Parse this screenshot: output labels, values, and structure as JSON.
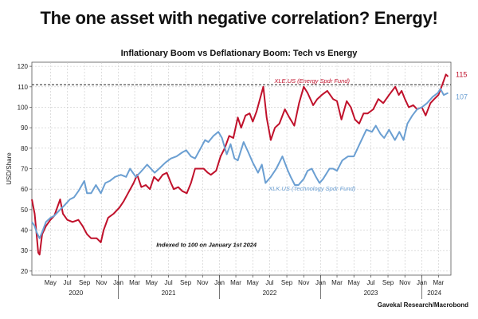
{
  "headline": "The one asset with negative correlation? Energy!",
  "source": "Gavekal Research/Macrobond",
  "chart_data": {
    "type": "line",
    "title": "Inflationary Boom vs Deflationary Boom: Tech vs Energy",
    "ylabel": "USD/Share",
    "xlabel": "",
    "ylim": [
      18,
      122
    ],
    "yticks": [
      20,
      30,
      40,
      50,
      60,
      70,
      80,
      90,
      100,
      110,
      120
    ],
    "xlim": [
      "2020-02-24",
      "2024-04-15"
    ],
    "x_month_ticks": [
      {
        "date": "2020-05-01",
        "label": "May"
      },
      {
        "date": "2020-07-01",
        "label": "Jul"
      },
      {
        "date": "2020-09-01",
        "label": "Sep"
      },
      {
        "date": "2020-11-01",
        "label": "Nov"
      },
      {
        "date": "2021-01-01",
        "label": "Jan"
      },
      {
        "date": "2021-03-01",
        "label": "Mar"
      },
      {
        "date": "2021-05-01",
        "label": "May"
      },
      {
        "date": "2021-07-01",
        "label": "Jul"
      },
      {
        "date": "2021-09-01",
        "label": "Sep"
      },
      {
        "date": "2021-11-01",
        "label": "Nov"
      },
      {
        "date": "2022-01-01",
        "label": "Jan"
      },
      {
        "date": "2022-03-01",
        "label": "Mar"
      },
      {
        "date": "2022-05-01",
        "label": "May"
      },
      {
        "date": "2022-07-01",
        "label": "Jul"
      },
      {
        "date": "2022-09-01",
        "label": "Sep"
      },
      {
        "date": "2022-11-01",
        "label": "Nov"
      },
      {
        "date": "2023-01-01",
        "label": "Jan"
      },
      {
        "date": "2023-03-01",
        "label": "Mar"
      },
      {
        "date": "2023-05-01",
        "label": "May"
      },
      {
        "date": "2023-07-01",
        "label": "Jul"
      },
      {
        "date": "2023-09-01",
        "label": "Sep"
      },
      {
        "date": "2023-11-01",
        "label": "Nov"
      },
      {
        "date": "2024-01-01",
        "label": "Jan"
      },
      {
        "date": "2024-03-01",
        "label": "Mar"
      }
    ],
    "x_year_labels": [
      {
        "date": "2020-08-01",
        "label": "2020"
      },
      {
        "date": "2021-07-01",
        "label": "2021"
      },
      {
        "date": "2022-07-01",
        "label": "2022"
      },
      {
        "date": "2023-07-01",
        "label": "2023"
      },
      {
        "date": "2024-02-15",
        "label": "2024"
      }
    ],
    "year_dividers": [
      "2021-01-01",
      "2022-01-01",
      "2023-01-01",
      "2024-01-01"
    ],
    "grid": true,
    "reference_line": {
      "y": 111,
      "style": "dashed"
    },
    "annotation": "Indexed to 100 on January 1st 2024",
    "series": [
      {
        "name": "XLE.US (Energy Spdr Fund)",
        "color": "#c0112b",
        "end_label": "115",
        "points": [
          [
            "2020-02-24",
            55
          ],
          [
            "2020-03-05",
            48
          ],
          [
            "2020-03-12",
            38
          ],
          [
            "2020-03-18",
            29
          ],
          [
            "2020-03-23",
            28
          ],
          [
            "2020-04-01",
            38
          ],
          [
            "2020-04-15",
            42
          ],
          [
            "2020-05-01",
            45
          ],
          [
            "2020-05-15",
            47
          ],
          [
            "2020-06-05",
            55
          ],
          [
            "2020-06-15",
            48
          ],
          [
            "2020-07-01",
            45
          ],
          [
            "2020-07-20",
            44
          ],
          [
            "2020-08-10",
            45
          ],
          [
            "2020-08-25",
            42
          ],
          [
            "2020-09-10",
            38
          ],
          [
            "2020-09-25",
            36
          ],
          [
            "2020-10-15",
            36
          ],
          [
            "2020-10-30",
            34
          ],
          [
            "2020-11-09",
            40
          ],
          [
            "2020-11-25",
            46
          ],
          [
            "2020-12-15",
            48
          ],
          [
            "2021-01-05",
            51
          ],
          [
            "2021-01-20",
            54
          ],
          [
            "2021-02-05",
            58
          ],
          [
            "2021-02-25",
            63
          ],
          [
            "2021-03-10",
            67
          ],
          [
            "2021-03-25",
            61
          ],
          [
            "2021-04-10",
            62
          ],
          [
            "2021-04-25",
            60
          ],
          [
            "2021-05-10",
            66
          ],
          [
            "2021-05-25",
            64
          ],
          [
            "2021-06-10",
            67
          ],
          [
            "2021-06-25",
            68
          ],
          [
            "2021-07-10",
            63
          ],
          [
            "2021-07-20",
            60
          ],
          [
            "2021-08-05",
            61
          ],
          [
            "2021-08-20",
            59
          ],
          [
            "2021-09-05",
            58
          ],
          [
            "2021-09-20",
            63
          ],
          [
            "2021-10-05",
            70
          ],
          [
            "2021-10-20",
            70
          ],
          [
            "2021-11-05",
            70
          ],
          [
            "2021-11-20",
            68
          ],
          [
            "2021-12-01",
            67
          ],
          [
            "2021-12-20",
            69
          ],
          [
            "2022-01-05",
            76
          ],
          [
            "2022-01-20",
            80
          ],
          [
            "2022-02-05",
            86
          ],
          [
            "2022-02-20",
            85
          ],
          [
            "2022-03-08",
            95
          ],
          [
            "2022-03-20",
            90
          ],
          [
            "2022-04-05",
            96
          ],
          [
            "2022-04-20",
            97
          ],
          [
            "2022-05-01",
            93
          ],
          [
            "2022-05-15",
            98
          ],
          [
            "2022-06-08",
            110
          ],
          [
            "2022-06-20",
            95
          ],
          [
            "2022-07-05",
            84
          ],
          [
            "2022-07-20",
            90
          ],
          [
            "2022-08-05",
            92
          ],
          [
            "2022-08-25",
            99
          ],
          [
            "2022-09-10",
            95
          ],
          [
            "2022-09-28",
            91
          ],
          [
            "2022-10-15",
            102
          ],
          [
            "2022-11-01",
            110
          ],
          [
            "2022-11-15",
            107
          ],
          [
            "2022-12-05",
            101
          ],
          [
            "2022-12-20",
            104
          ],
          [
            "2023-01-05",
            106
          ],
          [
            "2023-01-25",
            108
          ],
          [
            "2023-02-15",
            104
          ],
          [
            "2023-03-01",
            103
          ],
          [
            "2023-03-17",
            94
          ],
          [
            "2023-04-05",
            103
          ],
          [
            "2023-04-20",
            100
          ],
          [
            "2023-05-05",
            94
          ],
          [
            "2023-05-20",
            92
          ],
          [
            "2023-06-05",
            97
          ],
          [
            "2023-06-20",
            97
          ],
          [
            "2023-07-10",
            99
          ],
          [
            "2023-07-28",
            104
          ],
          [
            "2023-08-15",
            102
          ],
          [
            "2023-09-05",
            106
          ],
          [
            "2023-09-27",
            110
          ],
          [
            "2023-10-10",
            106
          ],
          [
            "2023-10-20",
            108
          ],
          [
            "2023-11-01",
            104
          ],
          [
            "2023-11-15",
            100
          ],
          [
            "2023-12-01",
            101
          ],
          [
            "2023-12-15",
            99
          ],
          [
            "2024-01-01",
            100
          ],
          [
            "2024-01-15",
            96
          ],
          [
            "2024-02-01",
            102
          ],
          [
            "2024-02-15",
            104
          ],
          [
            "2024-03-01",
            106
          ],
          [
            "2024-03-15",
            111
          ],
          [
            "2024-03-28",
            116
          ],
          [
            "2024-04-05",
            115
          ]
        ]
      },
      {
        "name": "XLK.US (Technology Spdr Fund)",
        "color": "#6b9fd2",
        "end_label": "107",
        "points": [
          [
            "2020-02-24",
            44
          ],
          [
            "2020-03-05",
            42
          ],
          [
            "2020-03-12",
            39
          ],
          [
            "2020-03-23",
            36
          ],
          [
            "2020-04-01",
            39
          ],
          [
            "2020-04-15",
            44
          ],
          [
            "2020-05-01",
            46
          ],
          [
            "2020-05-15",
            47
          ],
          [
            "2020-06-05",
            50
          ],
          [
            "2020-06-20",
            52
          ],
          [
            "2020-07-10",
            55
          ],
          [
            "2020-07-25",
            56
          ],
          [
            "2020-08-10",
            59
          ],
          [
            "2020-08-31",
            64
          ],
          [
            "2020-09-10",
            58
          ],
          [
            "2020-09-25",
            58
          ],
          [
            "2020-10-12",
            62
          ],
          [
            "2020-10-30",
            58
          ],
          [
            "2020-11-15",
            63
          ],
          [
            "2020-12-01",
            64
          ],
          [
            "2020-12-20",
            66
          ],
          [
            "2021-01-10",
            67
          ],
          [
            "2021-01-29",
            66
          ],
          [
            "2021-02-12",
            70
          ],
          [
            "2021-03-05",
            66
          ],
          [
            "2021-03-20",
            68
          ],
          [
            "2021-04-15",
            72
          ],
          [
            "2021-05-12",
            68
          ],
          [
            "2021-05-28",
            70
          ],
          [
            "2021-06-20",
            73
          ],
          [
            "2021-07-10",
            75
          ],
          [
            "2021-07-30",
            76
          ],
          [
            "2021-08-20",
            78
          ],
          [
            "2021-09-03",
            79
          ],
          [
            "2021-09-20",
            76
          ],
          [
            "2021-10-05",
            75
          ],
          [
            "2021-10-25",
            80
          ],
          [
            "2021-11-10",
            84
          ],
          [
            "2021-11-22",
            83
          ],
          [
            "2021-12-10",
            86
          ],
          [
            "2021-12-28",
            88
          ],
          [
            "2022-01-10",
            85
          ],
          [
            "2022-01-27",
            77
          ],
          [
            "2022-02-10",
            82
          ],
          [
            "2022-02-24",
            75
          ],
          [
            "2022-03-08",
            74
          ],
          [
            "2022-03-29",
            83
          ],
          [
            "2022-04-15",
            78
          ],
          [
            "2022-05-01",
            73
          ],
          [
            "2022-05-20",
            68
          ],
          [
            "2022-06-03",
            72
          ],
          [
            "2022-06-16",
            63
          ],
          [
            "2022-07-05",
            66
          ],
          [
            "2022-07-25",
            70
          ],
          [
            "2022-08-16",
            76
          ],
          [
            "2022-09-05",
            69
          ],
          [
            "2022-09-15",
            66
          ],
          [
            "2022-09-30",
            62
          ],
          [
            "2022-10-13",
            62
          ],
          [
            "2022-11-01",
            65
          ],
          [
            "2022-11-15",
            69
          ],
          [
            "2022-11-30",
            70
          ],
          [
            "2022-12-15",
            66
          ],
          [
            "2022-12-28",
            63
          ],
          [
            "2023-01-10",
            65
          ],
          [
            "2023-02-02",
            70
          ],
          [
            "2023-02-15",
            70
          ],
          [
            "2023-03-01",
            69
          ],
          [
            "2023-03-20",
            74
          ],
          [
            "2023-04-10",
            76
          ],
          [
            "2023-05-01",
            76
          ],
          [
            "2023-05-25",
            83
          ],
          [
            "2023-06-15",
            89
          ],
          [
            "2023-07-05",
            88
          ],
          [
            "2023-07-19",
            91
          ],
          [
            "2023-08-05",
            87
          ],
          [
            "2023-08-18",
            85
          ],
          [
            "2023-09-05",
            89
          ],
          [
            "2023-09-26",
            84
          ],
          [
            "2023-10-12",
            88
          ],
          [
            "2023-10-27",
            84
          ],
          [
            "2023-11-10",
            92
          ],
          [
            "2023-11-28",
            96
          ],
          [
            "2023-12-15",
            99
          ],
          [
            "2024-01-01",
            100
          ],
          [
            "2024-01-20",
            102
          ],
          [
            "2024-02-09",
            105
          ],
          [
            "2024-02-28",
            107
          ],
          [
            "2024-03-08",
            109
          ],
          [
            "2024-03-20",
            106
          ],
          [
            "2024-04-05",
            107
          ]
        ]
      }
    ]
  }
}
